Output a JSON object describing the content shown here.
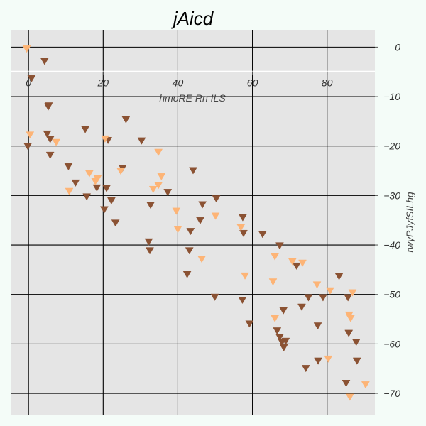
{
  "chart_data": {
    "type": "scatter",
    "title": "jAicd",
    "xlabel": "hmoRE Rn ILS",
    "ylabel": "rwyPJyfSILhg",
    "xlim": [
      -4.6,
      92.8
    ],
    "ylim": [
      -74.3,
      3.5
    ],
    "x_ticks": [
      0,
      20,
      40,
      60,
      80
    ],
    "x_tick_labels": [
      "0",
      "20",
      "40",
      "60",
      "80"
    ],
    "y_ticks": [
      0,
      -10,
      -20,
      -30,
      -40,
      -50,
      -60,
      -70
    ],
    "y_tick_labels": [
      "0",
      "−10",
      "−20",
      "−30",
      "−40",
      "−50",
      "−60",
      "−70"
    ],
    "x_axis_position": "top, inside plot at y = 0",
    "y_axis_position": "right",
    "grid": true,
    "legend": "none",
    "marker": "triangle-down",
    "colors": {
      "background": "#f4fcf8",
      "plot_area": "#e5e5e5",
      "grid": "#000000",
      "dark_series": "#8b5233",
      "light_series": "#fdb476"
    },
    "series": [
      {
        "color": "#8b5233",
        "points": [
          [
            4.3,
            -2.8
          ],
          [
            0.8,
            -6.3
          ],
          [
            5.3,
            -12.0
          ],
          [
            5.4,
            -11.8
          ],
          [
            5.0,
            -17.5
          ],
          [
            5.8,
            -18.6
          ],
          [
            5.8,
            -21.8
          ],
          [
            -0.2,
            -20.0
          ],
          [
            15.2,
            -16.6
          ],
          [
            21.3,
            -18.8
          ],
          [
            26.1,
            -14.6
          ],
          [
            30.3,
            -18.9
          ],
          [
            10.7,
            -24.1
          ],
          [
            12.6,
            -27.4
          ],
          [
            15.6,
            -30.2
          ],
          [
            18.3,
            -28.4
          ],
          [
            20.9,
            -28.5
          ],
          [
            20.3,
            -32.8
          ],
          [
            22.2,
            -31.0
          ],
          [
            23.3,
            -35.5
          ],
          [
            25.2,
            -24.4
          ],
          [
            32.7,
            -31.9
          ],
          [
            37.3,
            -29.3
          ],
          [
            44.1,
            -24.9
          ],
          [
            46.6,
            -31.8
          ],
          [
            50.3,
            -30.6
          ],
          [
            46.0,
            -35.0
          ],
          [
            43.4,
            -37.2
          ],
          [
            32.2,
            -39.3
          ],
          [
            32.5,
            -41.1
          ],
          [
            43.1,
            -41.1
          ],
          [
            42.5,
            -45.9
          ],
          [
            49.9,
            -50.5
          ],
          [
            57.4,
            -34.4
          ],
          [
            57.6,
            -37.6
          ],
          [
            62.7,
            -37.8
          ],
          [
            67.3,
            -40.1
          ],
          [
            71.8,
            -44.2
          ],
          [
            75.0,
            -50.6
          ],
          [
            83.2,
            -46.3
          ],
          [
            78.9,
            -50.6
          ],
          [
            85.6,
            -50.6
          ],
          [
            68.3,
            -53.2
          ],
          [
            73.2,
            -52.5
          ],
          [
            77.5,
            -56.3
          ],
          [
            57.3,
            -51.1
          ],
          [
            59.2,
            -55.9
          ],
          [
            66.6,
            -57.3
          ],
          [
            67.3,
            -58.6
          ],
          [
            67.9,
            -59.6
          ],
          [
            68.9,
            -59.4
          ],
          [
            68.4,
            -60.7
          ],
          [
            85.8,
            -57.8
          ],
          [
            87.8,
            -59.6
          ],
          [
            74.3,
            -64.9
          ],
          [
            77.6,
            -63.4
          ],
          [
            88.0,
            -63.4
          ],
          [
            85.1,
            -67.9
          ]
        ]
      },
      {
        "color": "#fdb476",
        "points": [
          [
            -0.5,
            -0.3
          ],
          [
            0.4,
            -17.7
          ],
          [
            7.4,
            -19.2
          ],
          [
            20.5,
            -18.5
          ],
          [
            34.8,
            -21.2
          ],
          [
            16.3,
            -25.5
          ],
          [
            17.9,
            -27.1
          ],
          [
            18.5,
            -26.5
          ],
          [
            24.7,
            -25.0
          ],
          [
            35.6,
            -26.1
          ],
          [
            33.4,
            -28.7
          ],
          [
            34.8,
            -27.9
          ],
          [
            10.9,
            -29.1
          ],
          [
            39.6,
            -33.1
          ],
          [
            50.1,
            -34.1
          ],
          [
            40.0,
            -36.8
          ],
          [
            56.9,
            -36.4
          ],
          [
            46.4,
            -42.8
          ],
          [
            58.0,
            -46.2
          ],
          [
            66.0,
            -42.3
          ],
          [
            70.7,
            -43.3
          ],
          [
            73.4,
            -43.6
          ],
          [
            65.5,
            -47.4
          ],
          [
            77.3,
            -48.0
          ],
          [
            80.8,
            -49.2
          ],
          [
            86.8,
            -49.6
          ],
          [
            66.0,
            -54.8
          ],
          [
            85.9,
            -54.1
          ],
          [
            86.3,
            -54.8
          ],
          [
            80.3,
            -63.0
          ],
          [
            90.3,
            -68.2
          ],
          [
            86.1,
            -70.7
          ]
        ]
      }
    ]
  }
}
